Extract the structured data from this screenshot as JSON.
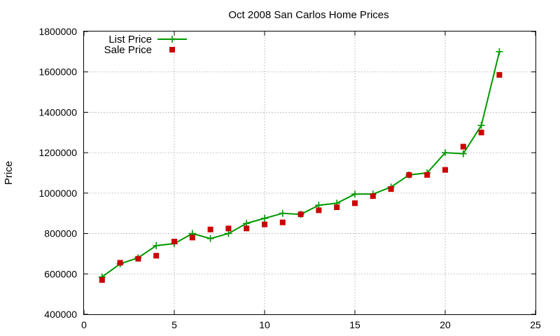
{
  "chart_data": {
    "type": "line",
    "title": "Oct 2008 San Carlos Home Prices",
    "xlabel": "",
    "ylabel": "Price",
    "xlim": [
      0,
      25
    ],
    "ylim": [
      400000,
      1800000
    ],
    "xticks": [
      0,
      5,
      10,
      15,
      20,
      25
    ],
    "yticks": [
      400000,
      600000,
      800000,
      1000000,
      1200000,
      1400000,
      1600000,
      1800000
    ],
    "grid": true,
    "legend_position": "top-left",
    "series": [
      {
        "name": "List Price",
        "style": "linespoints",
        "marker": "plus",
        "color": "#009900",
        "x": [
          1,
          2,
          3,
          4,
          5,
          6,
          7,
          8,
          9,
          10,
          11,
          12,
          13,
          14,
          15,
          16,
          17,
          18,
          19,
          20,
          21,
          22,
          23
        ],
        "y": [
          585000,
          650000,
          680000,
          740000,
          750000,
          800000,
          775000,
          800000,
          850000,
          875000,
          900000,
          895000,
          940000,
          950000,
          995000,
          995000,
          1030000,
          1090000,
          1100000,
          1200000,
          1195000,
          1335000,
          1700000
        ]
      },
      {
        "name": "Sale Price",
        "style": "points",
        "marker": "square",
        "color": "#cc0000",
        "x": [
          1,
          2,
          3,
          4,
          5,
          6,
          7,
          8,
          9,
          10,
          11,
          12,
          13,
          14,
          15,
          16,
          17,
          18,
          19,
          20,
          21,
          22,
          23
        ],
        "y": [
          570000,
          655000,
          675000,
          690000,
          760000,
          780000,
          820000,
          825000,
          825000,
          845000,
          855000,
          895000,
          915000,
          930000,
          950000,
          985000,
          1020000,
          1090000,
          1090000,
          1115000,
          1230000,
          1300000,
          1585000
        ]
      }
    ]
  }
}
